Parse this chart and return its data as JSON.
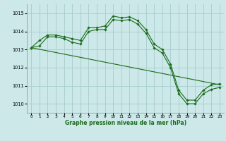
{
  "title": "Graphe pression niveau de la mer (hPa)",
  "bg_color": "#cce8e8",
  "grid_color": "#aad0d0",
  "line_color": "#1a6b1a",
  "marker_color": "#1a6b1a",
  "xlim": [
    -0.5,
    23.5
  ],
  "ylim": [
    1009.5,
    1015.5
  ],
  "yticks": [
    1010,
    1011,
    1012,
    1013,
    1014,
    1015
  ],
  "xticks": [
    0,
    1,
    2,
    3,
    4,
    5,
    6,
    7,
    8,
    9,
    10,
    11,
    12,
    13,
    14,
    15,
    16,
    17,
    18,
    19,
    20,
    21,
    22,
    23
  ],
  "series": [
    {
      "x": [
        0,
        1,
        2,
        3,
        4,
        5,
        6,
        7,
        8,
        9,
        10,
        11,
        12,
        13,
        14,
        15,
        16,
        17,
        18,
        19,
        20,
        21,
        22,
        23
      ],
      "y": [
        1013.1,
        1013.5,
        1013.8,
        1013.8,
        1013.7,
        1013.6,
        1013.5,
        1014.2,
        1014.2,
        1014.3,
        1014.85,
        1014.75,
        1014.8,
        1014.6,
        1014.1,
        1013.3,
        1013.0,
        1012.2,
        1010.75,
        1010.2,
        1010.2,
        1010.75,
        1011.05,
        1011.1
      ],
      "has_markers": true
    },
    {
      "x": [
        0,
        1,
        2,
        3,
        4,
        5,
        6,
        7,
        8,
        9,
        10,
        11,
        12,
        13,
        14,
        15,
        16,
        17,
        18,
        19,
        20,
        21,
        22,
        23
      ],
      "y": [
        1013.1,
        1013.2,
        1013.7,
        1013.7,
        1013.6,
        1013.4,
        1013.3,
        1014.0,
        1014.1,
        1014.1,
        1014.65,
        1014.6,
        1014.65,
        1014.4,
        1013.9,
        1013.1,
        1012.8,
        1012.0,
        1010.55,
        1010.0,
        1010.0,
        1010.55,
        1010.8,
        1010.9
      ],
      "has_markers": true
    },
    {
      "x": [
        0,
        23
      ],
      "y": [
        1013.1,
        1011.05
      ],
      "has_markers": false
    }
  ]
}
